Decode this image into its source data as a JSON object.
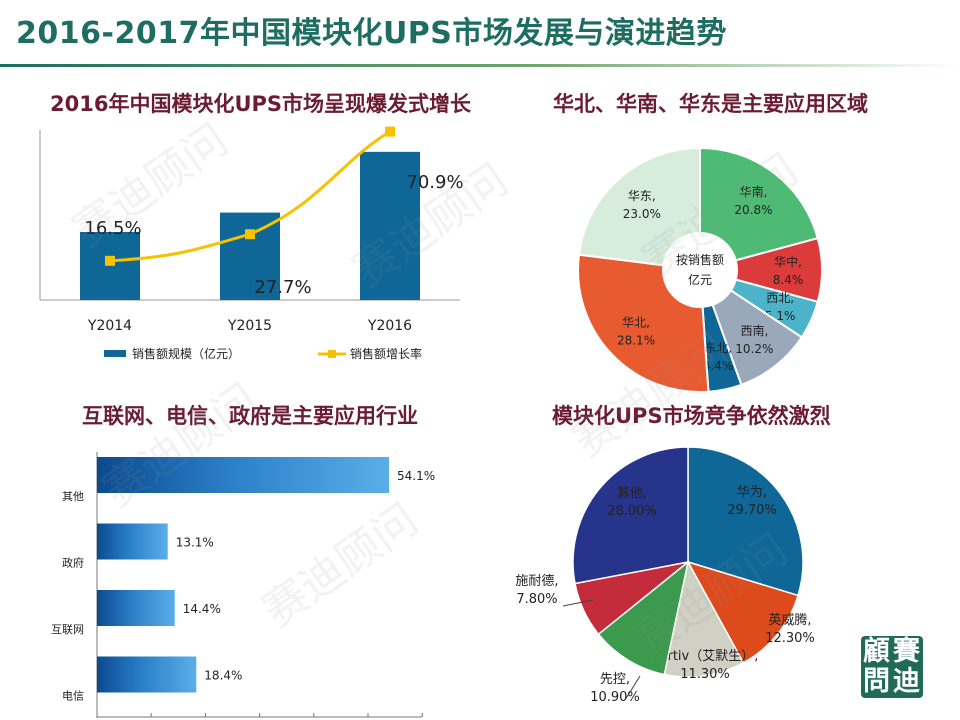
{
  "page": {
    "title": "2016-2017年中国模块化UPS市场发展与演进趋势",
    "watermark": "赛迪顾问",
    "logo_chars": [
      "顧",
      "賽",
      "問",
      "迪"
    ]
  },
  "sections": {
    "growth": "2016年中国模块化UPS市场呈现爆发式增长",
    "region": "华北、华南、华东是主要应用区域",
    "industry": "互联网、电信、政府是主要应用行业",
    "competition": "模块化UPS市场竞争依然激烈"
  },
  "chart_data": [
    {
      "type": "bar",
      "categories": [
        "Y2014",
        "Y2015",
        "Y2016"
      ],
      "series": [
        {
          "name": "销售额规模（亿元）",
          "type": "bar",
          "values": [
            5.6,
            7.2,
            12.2
          ],
          "color": "#0e6796"
        },
        {
          "name": "销售额增长率",
          "type": "line",
          "values": [
            16.5,
            27.7,
            70.9
          ],
          "color": "#f5c100"
        }
      ],
      "data_labels": [
        "16.5%",
        "27.7%",
        "70.9%"
      ]
    },
    {
      "type": "pie",
      "center_label": "按销售额亿元",
      "slices": [
        {
          "label": "华东",
          "value": 23.0,
          "display": "23.0%",
          "color": "#d7ecdb"
        },
        {
          "label": "华南",
          "value": 20.8,
          "display": "20.8%",
          "color": "#4dbb73"
        },
        {
          "label": "华中",
          "value": 8.4,
          "display": "8.4%",
          "color": "#dc3b3b"
        },
        {
          "label": "西北",
          "value": 5.1,
          "display": "5.1%",
          "color": "#4db3c8"
        },
        {
          "label": "西南",
          "value": 10.2,
          "display": "10.2%",
          "color": "#9aa8bc"
        },
        {
          "label": "东北",
          "value": 4.4,
          "display": "4.4%",
          "color": "#0e6796"
        },
        {
          "label": "华北",
          "value": 28.1,
          "display": "28.1%",
          "color": "#e85a30"
        }
      ]
    },
    {
      "type": "bar",
      "orientation": "horizontal",
      "categories": [
        "其他",
        "政府",
        "互联网",
        "电信"
      ],
      "values": [
        54.1,
        13.1,
        14.4,
        18.4
      ],
      "value_labels": [
        "54.1%",
        "13.1%",
        "14.4%",
        "18.4%"
      ],
      "color": "#2b7fc7"
    },
    {
      "type": "pie",
      "slices": [
        {
          "label": "华为",
          "value": 29.7,
          "display": "29.70%",
          "color": "#0e6796"
        },
        {
          "label": "英威腾",
          "value": 12.3,
          "display": "12.30%",
          "color": "#dd4a1c"
        },
        {
          "label": "Vertiv（艾默生）",
          "value": 11.3,
          "display": "11.30%",
          "color": "#d0d0c4"
        },
        {
          "label": "先控",
          "value": 10.9,
          "display": "10.90%",
          "color": "#3c9a4d"
        },
        {
          "label": "施耐德",
          "value": 7.8,
          "display": "7.80%",
          "color": "#c42b3b"
        },
        {
          "label": "其他",
          "value": 28.0,
          "display": "28.00%",
          "color": "#27348b"
        }
      ]
    }
  ]
}
